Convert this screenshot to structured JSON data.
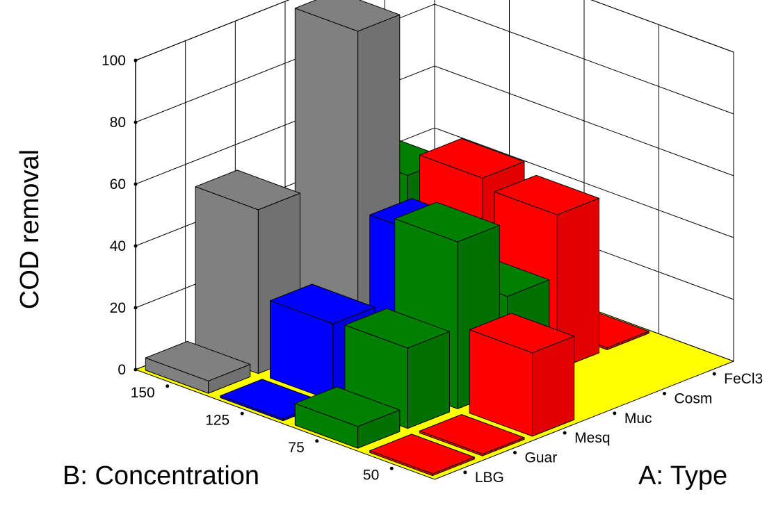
{
  "chart_data": {
    "type": "bar3d",
    "ylabel": "COD removal",
    "xlabel": "A: Type",
    "zlabel": "B: Concentration",
    "ylim": [
      0,
      100
    ],
    "y_ticks": [
      "0",
      "20",
      "40",
      "60",
      "80",
      "100"
    ],
    "types": [
      "LBG",
      "Guar",
      "Mesq",
      "Muc",
      "Cosm",
      "FeCl3"
    ],
    "concentrations": [
      "50",
      "75",
      "125",
      "150"
    ],
    "floor_color": "#ffff00",
    "bars": [
      {
        "type": "FeCl3",
        "concentration": "150",
        "value": 0,
        "color": "#ff0000"
      },
      {
        "type": "FeCl3",
        "concentration": "125",
        "value": 33,
        "color": "#008000"
      },
      {
        "type": "FeCl3",
        "concentration": "75",
        "value": 0,
        "color": "#ff0000"
      },
      {
        "type": "Cosm",
        "concentration": "150",
        "value": 45,
        "color": "#008000"
      },
      {
        "type": "Cosm",
        "concentration": "125",
        "value": 53,
        "color": "#ff0000"
      },
      {
        "type": "Cosm",
        "concentration": "75",
        "value": 50,
        "color": "#ff0000"
      },
      {
        "type": "Muc",
        "concentration": "150",
        "value": 98,
        "color": "#808080"
      },
      {
        "type": "Muc",
        "concentration": "125",
        "value": 40,
        "color": "#0000ff"
      },
      {
        "type": "Muc",
        "concentration": "75",
        "value": 30,
        "color": "#008000"
      },
      {
        "type": "Mesq",
        "concentration": "150",
        "value": 0,
        "color": "#808080"
      },
      {
        "type": "Mesq",
        "concentration": "125",
        "value": 9,
        "color": "#0000ff"
      },
      {
        "type": "Mesq",
        "concentration": "75",
        "value": 54,
        "color": "#008000"
      },
      {
        "type": "Mesq",
        "concentration": "50",
        "value": 27,
        "color": "#ff0000"
      },
      {
        "type": "Guar",
        "concentration": "150",
        "value": 53,
        "color": "#808080"
      },
      {
        "type": "Guar",
        "concentration": "125",
        "value": 25,
        "color": "#0000ff"
      },
      {
        "type": "Guar",
        "concentration": "75",
        "value": 26,
        "color": "#008000"
      },
      {
        "type": "Guar",
        "concentration": "50",
        "value": 0,
        "color": "#ff0000"
      },
      {
        "type": "LBG",
        "concentration": "150",
        "value": 4,
        "color": "#808080"
      },
      {
        "type": "LBG",
        "concentration": "125",
        "value": 0,
        "color": "#0000ff"
      },
      {
        "type": "LBG",
        "concentration": "75",
        "value": 7,
        "color": "#008000"
      },
      {
        "type": "LBG",
        "concentration": "50",
        "value": 0,
        "color": "#ff0000"
      }
    ]
  }
}
